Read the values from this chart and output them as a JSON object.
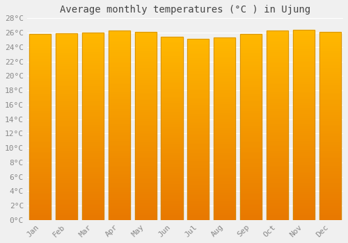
{
  "title": "Average monthly temperatures (°C ) in Ujung",
  "months": [
    "Jan",
    "Feb",
    "Mar",
    "Apr",
    "May",
    "Jun",
    "Jul",
    "Aug",
    "Sep",
    "Oct",
    "Nov",
    "Dec"
  ],
  "values": [
    25.8,
    25.9,
    26.0,
    26.3,
    26.1,
    25.4,
    25.1,
    25.3,
    25.8,
    26.3,
    26.4,
    26.1
  ],
  "ylim": [
    0,
    28
  ],
  "yticks": [
    0,
    2,
    4,
    6,
    8,
    10,
    12,
    14,
    16,
    18,
    20,
    22,
    24,
    26,
    28
  ],
  "bar_color_bright": "#FFB800",
  "bar_color_dark": "#E87800",
  "bar_edge_color": "#CC8800",
  "background_color": "#F0F0F0",
  "grid_color": "#FFFFFF",
  "title_fontsize": 10,
  "tick_fontsize": 8,
  "title_color": "#444444",
  "tick_color": "#888888",
  "font_family": "monospace"
}
